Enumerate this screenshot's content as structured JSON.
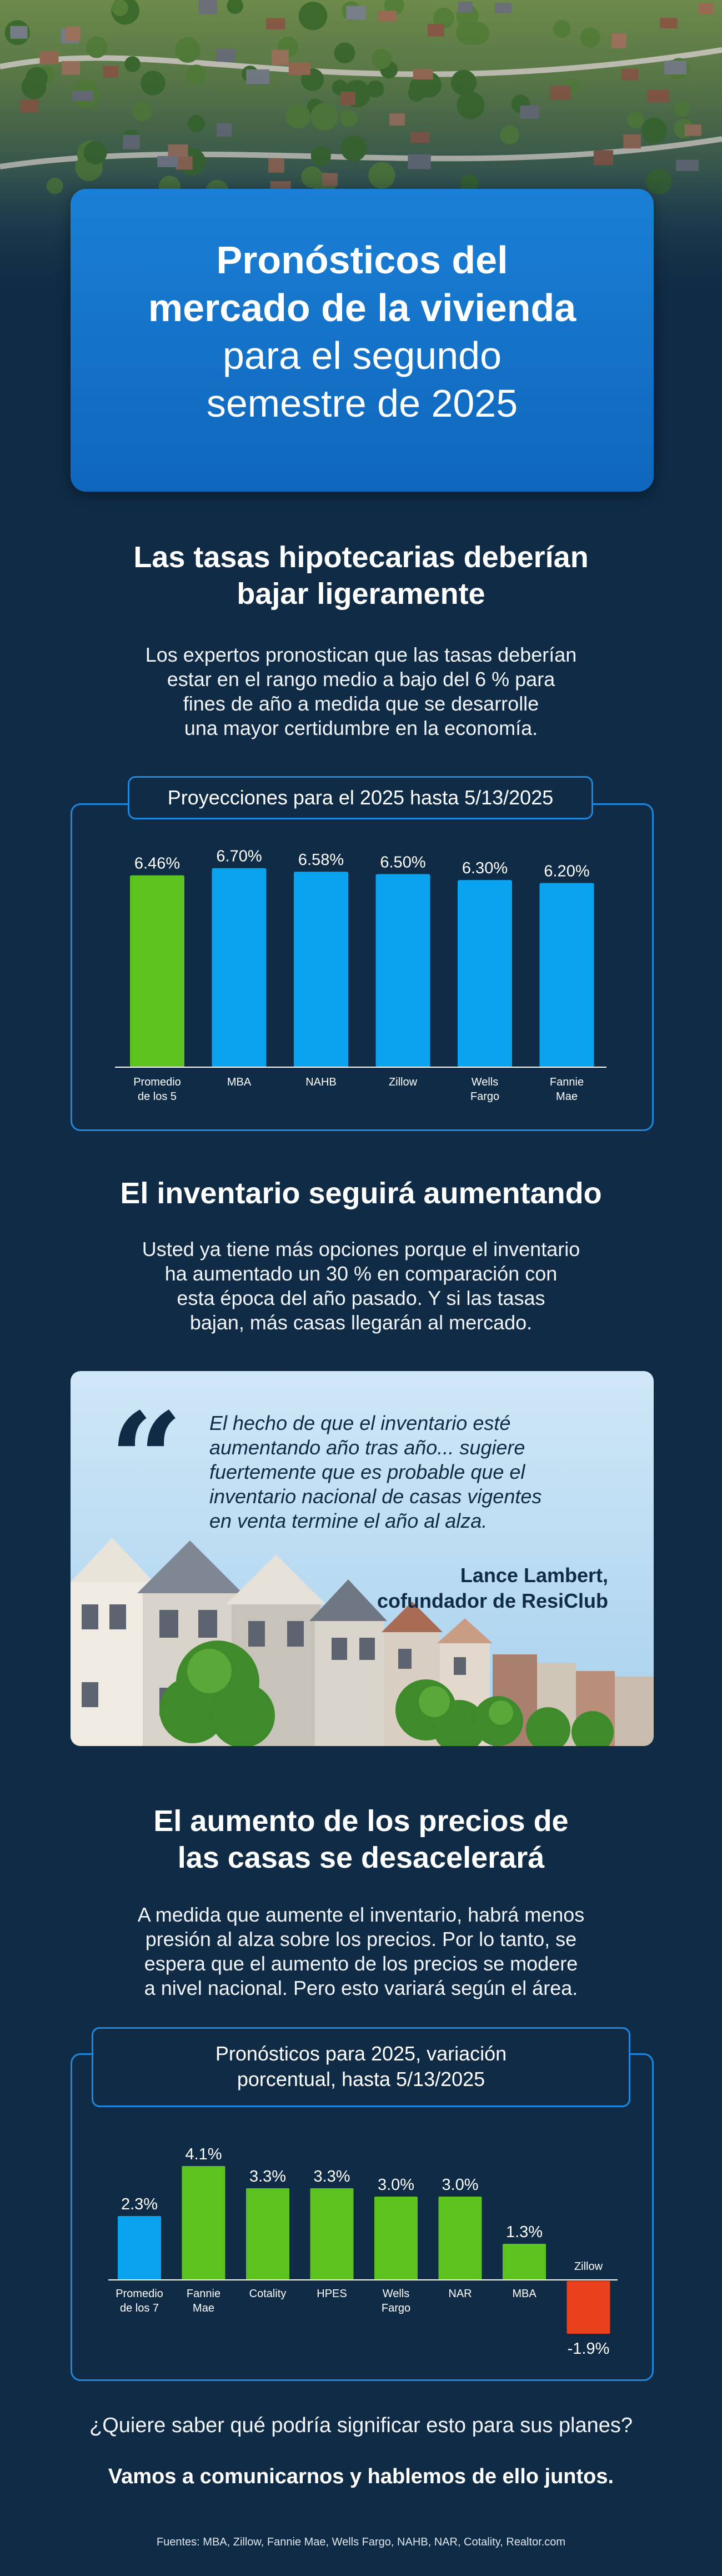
{
  "hero": {
    "title_bold": [
      "Pronósticos del",
      "mercado de la vivienda"
    ],
    "title_regular": [
      "para el segundo",
      "semestre de 2025"
    ]
  },
  "section1": {
    "heading": [
      "Las tasas hipotecarias deberían",
      "bajar ligeramente"
    ],
    "body": [
      "Los expertos pronostican que las tasas deberían",
      "estar en el rango medio a bajo del 6 % para",
      "fines de año a medida que se desarrolle",
      "una mayor certidumbre en la economía."
    ]
  },
  "section2": {
    "heading": "El inventario seguirá aumentando",
    "body": [
      "Usted ya tiene más opciones porque el inventario",
      "ha aumentado un 30 % en comparación con",
      "esta época del año pasado. Y si las tasas",
      "bajan, más casas llegarán al mercado."
    ]
  },
  "quote": {
    "mark": "“",
    "text": [
      "El hecho de que el inventario esté",
      "aumentando año tras año... sugiere",
      "fuertemente que es probable que el",
      "inventario nacional de casas vigentes",
      "en venta termine el año al alza."
    ],
    "author": [
      "Lance Lambert,",
      "cofundador de ResiClub"
    ]
  },
  "section3": {
    "heading": [
      "El aumento de los precios de",
      "las casas se desacelerará"
    ],
    "body": [
      "A medida que aumente el inventario, habrá menos",
      "presión al alza sobre los precios. Por lo tanto, se",
      "espera que el aumento de los precios se modere",
      "a nivel nacional. Pero esto variará según el área."
    ]
  },
  "cta": {
    "question": "¿Quiere saber qué podría significar esto para sus planes?",
    "action": "Vamos a comunicarnos y hablemos de ello juntos."
  },
  "sources": "Fuentes: MBA, Zillow, Fannie Mae, Wells Fargo, NAHB, NAR, Cotality, Realtor.com",
  "colors": {
    "background": "#0f2b45",
    "accent_blue": "#1e86dd",
    "bar_green": "#5cc21d",
    "bar_blue": "#0aa3ef",
    "bar_red": "#e8411c"
  },
  "chart_data": [
    {
      "type": "bar",
      "title": "Proyecciones para el 2025 hasta 5/13/2025",
      "categories": [
        [
          "Promedio",
          "de los 5"
        ],
        [
          "MBA"
        ],
        [
          "NAHB"
        ],
        [
          "Zillow"
        ],
        [
          "Wells",
          "Fargo"
        ],
        [
          "Fannie",
          "Mae"
        ]
      ],
      "values": [
        6.46,
        6.7,
        6.58,
        6.5,
        6.3,
        6.2
      ],
      "value_labels": [
        "6.46%",
        "6.70%",
        "6.58%",
        "6.50%",
        "6.30%",
        "6.20%"
      ],
      "bar_colors": [
        "green",
        "blue",
        "blue",
        "blue",
        "blue",
        "blue"
      ],
      "ylim": [
        0,
        7.2
      ]
    },
    {
      "type": "bar",
      "title": [
        "Pronósticos para 2025, variación",
        "porcentual, hasta 5/13/2025"
      ],
      "categories": [
        [
          "Promedio",
          "de los 7"
        ],
        [
          "Fannie",
          "Mae"
        ],
        [
          "Cotality"
        ],
        [
          "HPES"
        ],
        [
          "Wells",
          "Fargo"
        ],
        [
          "NAR"
        ],
        [
          "MBA"
        ],
        [
          "Zillow"
        ]
      ],
      "values": [
        2.3,
        4.1,
        3.3,
        3.3,
        3.0,
        3.0,
        1.3,
        -1.9
      ],
      "value_labels": [
        "2.3%",
        "4.1%",
        "3.3%",
        "3.3%",
        "3.0%",
        "3.0%",
        "1.3%",
        "-1.9%"
      ],
      "bar_colors": [
        "blue",
        "green",
        "green",
        "green",
        "green",
        "green",
        "green",
        "red"
      ],
      "ylim": [
        -2,
        4.5
      ]
    }
  ]
}
